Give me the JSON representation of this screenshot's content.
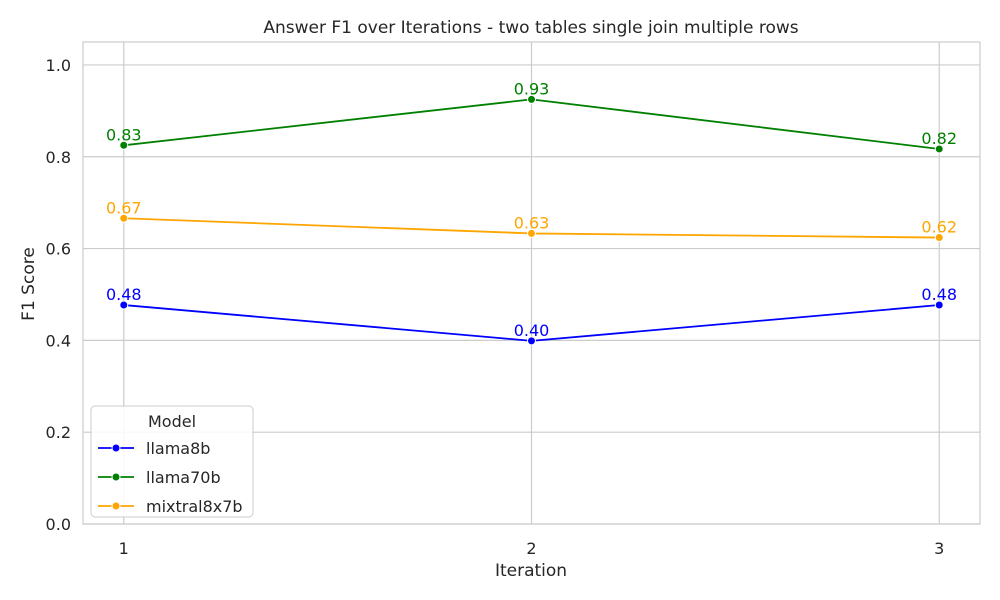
{
  "chart_data": {
    "type": "line",
    "title": "Answer F1 over Iterations - two tables single join multiple rows",
    "xlabel": "Iteration",
    "ylabel": "F1 Score",
    "x": [
      1,
      2,
      3
    ],
    "x_tick_labels": [
      "1",
      "2",
      "3"
    ],
    "ylim": [
      0,
      1.05
    ],
    "y_ticks": [
      0.0,
      0.2,
      0.4,
      0.6,
      0.8,
      1.0
    ],
    "y_tick_labels": [
      "0.0",
      "0.2",
      "0.4",
      "0.6",
      "0.8",
      "1.0"
    ],
    "grid": true,
    "legend": {
      "title": "Model",
      "position": "bottom-left"
    },
    "series": [
      {
        "name": "llama8b",
        "color": "#0000ff",
        "values": [
          0.477,
          0.399,
          0.477
        ],
        "labels": [
          "0.48",
          "0.40",
          "0.48"
        ]
      },
      {
        "name": "llama70b",
        "color": "#008000",
        "values": [
          0.825,
          0.925,
          0.817
        ],
        "labels": [
          "0.83",
          "0.93",
          "0.82"
        ]
      },
      {
        "name": "mixtral8x7b",
        "color": "#ffa500",
        "values": [
          0.666,
          0.633,
          0.624
        ],
        "labels": [
          "0.67",
          "0.63",
          "0.62"
        ]
      }
    ]
  }
}
